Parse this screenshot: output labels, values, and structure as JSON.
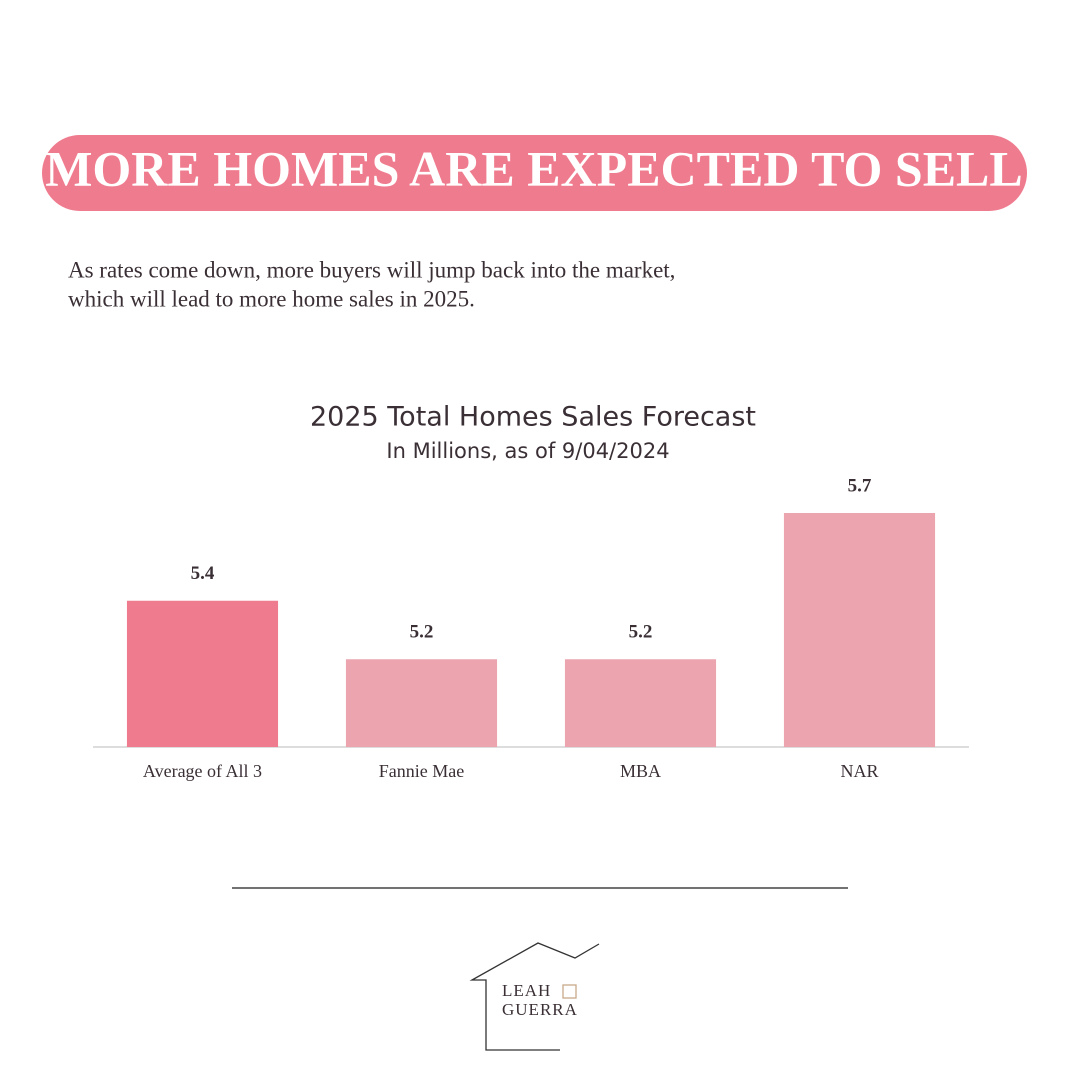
{
  "header": {
    "title": "MORE HOMES ARE EXPECTED TO SELL",
    "description": [
      "As rates come down, more buyers will jump back into the market,",
      "which will lead to more home sales in 2025."
    ]
  },
  "chart_data": {
    "type": "bar",
    "title": "2025 Total Homes Sales Forecast",
    "subtitle": "In Millions, as of 9/04/2024",
    "categories": [
      "Average of All 3",
      "Fannie Mae",
      "MBA",
      "NAR"
    ],
    "values": [
      5.4,
      5.2,
      5.2,
      5.7
    ],
    "colors": [
      "#ef7b8e",
      "#eca4ae",
      "#eca4ae",
      "#eca4ae"
    ],
    "ylim": [
      4.9,
      5.7
    ]
  },
  "logo": {
    "line1": "LEAH",
    "line2": "GUERRA"
  }
}
